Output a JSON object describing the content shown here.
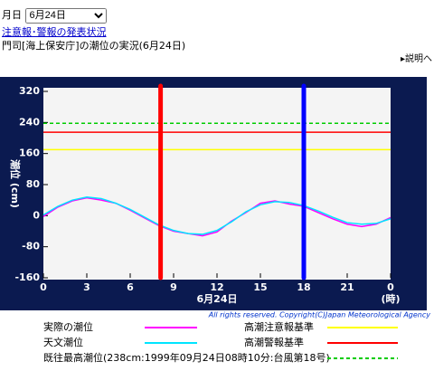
{
  "header": {
    "date_label": "月日",
    "date_selected": "6月24日",
    "link": "注意報･警報の発表状況",
    "subtitle": "門司[海上保安庁]の潮位の実況(6月24日)",
    "help": "説明へ"
  },
  "chart_data": {
    "type": "line",
    "ylabel": "潮位 (cm)",
    "xlabel": "6月24日",
    "xunit": "(時)",
    "copyright": "All rights reserved. Copyright(C)Japan Meteorological Agency",
    "x": [
      0,
      1,
      2,
      3,
      4,
      5,
      6,
      7,
      8,
      9,
      10,
      11,
      12,
      13,
      14,
      15,
      16,
      17,
      18,
      19,
      20,
      21,
      22,
      23,
      24
    ],
    "series": [
      {
        "name": "実際の潮位",
        "color": "#ff00ff",
        "values": [
          -2,
          22,
          38,
          46,
          40,
          32,
          14,
          -6,
          -26,
          -40,
          -46,
          -52,
          -42,
          -14,
          8,
          32,
          38,
          30,
          24,
          8,
          -8,
          -22,
          -28,
          -22,
          -5
        ]
      },
      {
        "name": "天文潮位",
        "color": "#00e5ff",
        "values": [
          2,
          24,
          40,
          48,
          44,
          32,
          16,
          -4,
          -24,
          -38,
          -46,
          -48,
          -38,
          -16,
          10,
          28,
          36,
          34,
          26,
          12,
          -4,
          -18,
          -22,
          -20,
          -8
        ]
      }
    ],
    "reference_lines": [
      {
        "name": "高潮注意報基準",
        "color": "#ffff00",
        "value": 170,
        "dashed": false
      },
      {
        "name": "高潮警報基準",
        "color": "#ff0000",
        "value": 215,
        "dashed": false
      },
      {
        "name": "既往最高潮位(238cm:1999年09月24日08時10分:台風第18号)",
        "color": "#00cc00",
        "value": 238,
        "dashed": true
      }
    ],
    "markers": [
      {
        "value": 8.1,
        "color": "#ff0000"
      },
      {
        "value": 18,
        "color": "#0000ff"
      }
    ],
    "xlim": [
      0,
      24
    ],
    "xticks": [
      0,
      3,
      6,
      9,
      12,
      15,
      18,
      21,
      {
        "value": 24,
        "label": "0"
      }
    ],
    "ylim": [
      -160,
      320
    ],
    "yticks": [
      320,
      240,
      160,
      80,
      0,
      -80,
      -160
    ],
    "grid": false
  }
}
